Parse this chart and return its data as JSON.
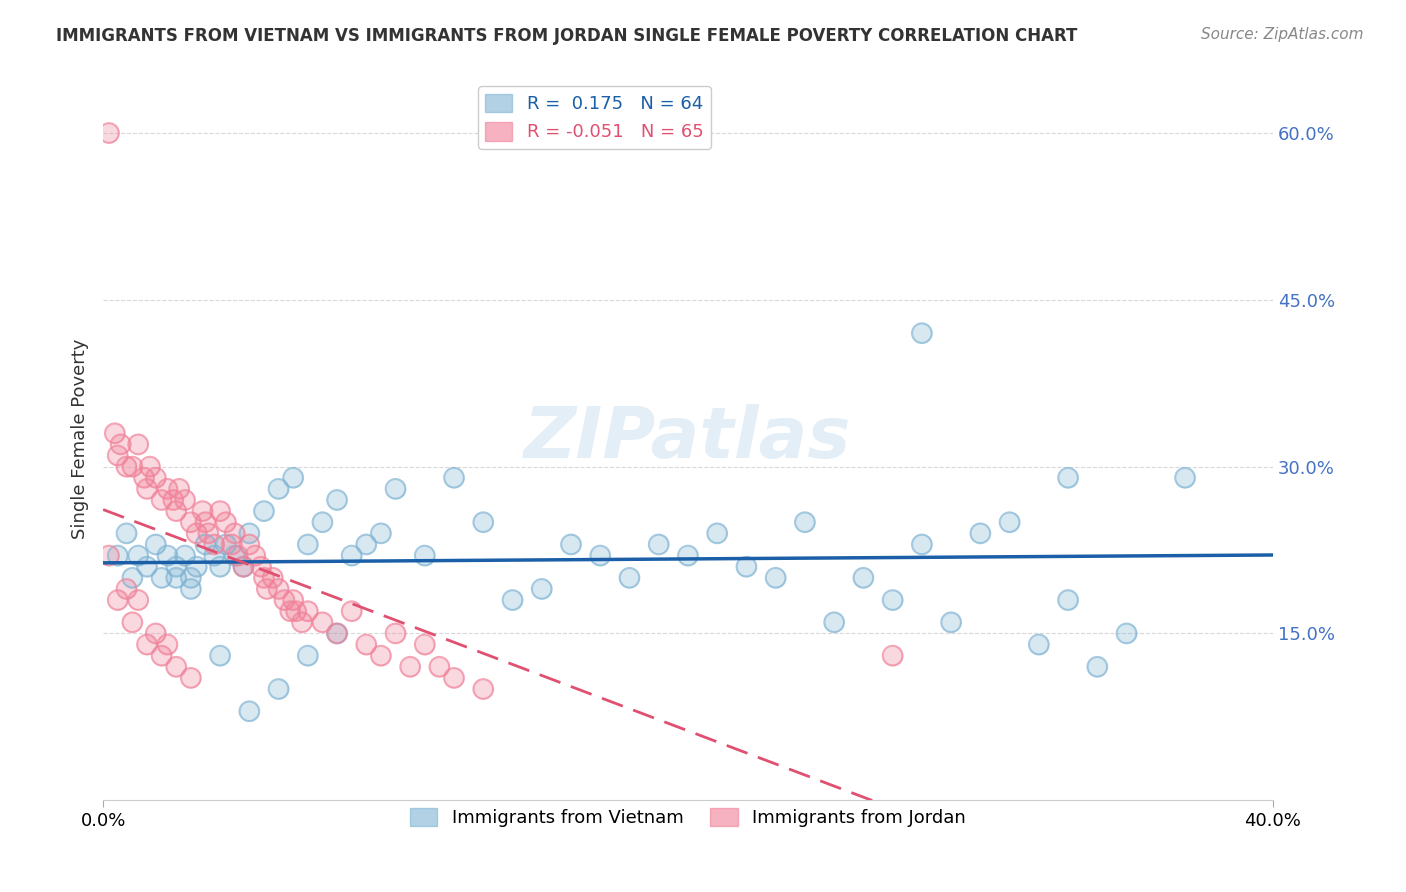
{
  "title": "IMMIGRANTS FROM VIETNAM VS IMMIGRANTS FROM JORDAN SINGLE FEMALE POVERTY CORRELATION CHART",
  "source": "Source: ZipAtlas.com",
  "xlabel_bottom_left": "0.0%",
  "xlabel_bottom_right": "40.0%",
  "ylabel": "Single Female Poverty",
  "right_yticks": [
    "60.0%",
    "45.0%",
    "30.0%",
    "15.0%"
  ],
  "right_ytick_vals": [
    0.6,
    0.45,
    0.3,
    0.15
  ],
  "xlim": [
    0.0,
    0.4
  ],
  "ylim": [
    0.0,
    0.65
  ],
  "watermark": "ZIPatlas",
  "legend_entries": [
    {
      "label": "R =  0.175   N = 64",
      "color": "#a8c4e0"
    },
    {
      "label": "R = -0.051   N = 65",
      "color": "#f4a8b8"
    }
  ],
  "vietnam_color": "#7fb3d3",
  "jordan_color": "#f08098",
  "vietnam_line_color": "#1a5fa8",
  "jordan_line_color": "#e05070",
  "vietnam_R": 0.175,
  "jordan_R": -0.051,
  "vietnam_N": 64,
  "jordan_N": 65,
  "background_color": "#ffffff",
  "grid_color": "#d8d8d8",
  "vietnam_scatter_x": [
    0.005,
    0.008,
    0.01,
    0.012,
    0.015,
    0.018,
    0.02,
    0.022,
    0.025,
    0.028,
    0.03,
    0.032,
    0.035,
    0.038,
    0.04,
    0.042,
    0.045,
    0.048,
    0.05,
    0.055,
    0.06,
    0.065,
    0.07,
    0.075,
    0.08,
    0.085,
    0.09,
    0.095,
    0.1,
    0.11,
    0.12,
    0.13,
    0.14,
    0.15,
    0.16,
    0.17,
    0.18,
    0.19,
    0.2,
    0.21,
    0.22,
    0.23,
    0.24,
    0.25,
    0.26,
    0.27,
    0.28,
    0.29,
    0.3,
    0.31,
    0.32,
    0.33,
    0.34,
    0.35,
    0.025,
    0.03,
    0.04,
    0.05,
    0.06,
    0.07,
    0.08,
    0.28,
    0.33,
    0.37
  ],
  "vietnam_scatter_y": [
    0.22,
    0.24,
    0.2,
    0.22,
    0.21,
    0.23,
    0.2,
    0.22,
    0.21,
    0.22,
    0.2,
    0.21,
    0.23,
    0.22,
    0.21,
    0.23,
    0.22,
    0.21,
    0.24,
    0.26,
    0.28,
    0.29,
    0.23,
    0.25,
    0.27,
    0.22,
    0.23,
    0.24,
    0.28,
    0.22,
    0.29,
    0.25,
    0.18,
    0.19,
    0.23,
    0.22,
    0.2,
    0.23,
    0.22,
    0.24,
    0.21,
    0.2,
    0.25,
    0.16,
    0.2,
    0.18,
    0.23,
    0.16,
    0.24,
    0.25,
    0.14,
    0.18,
    0.12,
    0.15,
    0.2,
    0.19,
    0.13,
    0.08,
    0.1,
    0.13,
    0.15,
    0.42,
    0.29,
    0.29
  ],
  "jordan_scatter_x": [
    0.002,
    0.004,
    0.005,
    0.006,
    0.008,
    0.01,
    0.012,
    0.014,
    0.015,
    0.016,
    0.018,
    0.02,
    0.022,
    0.024,
    0.025,
    0.026,
    0.028,
    0.03,
    0.032,
    0.034,
    0.035,
    0.036,
    0.038,
    0.04,
    0.042,
    0.044,
    0.045,
    0.046,
    0.048,
    0.05,
    0.052,
    0.054,
    0.055,
    0.056,
    0.058,
    0.06,
    0.062,
    0.064,
    0.065,
    0.066,
    0.068,
    0.07,
    0.075,
    0.08,
    0.085,
    0.09,
    0.095,
    0.1,
    0.105,
    0.11,
    0.115,
    0.12,
    0.13,
    0.005,
    0.01,
    0.015,
    0.02,
    0.025,
    0.03,
    0.008,
    0.012,
    0.018,
    0.022,
    0.27,
    0.002
  ],
  "jordan_scatter_y": [
    0.6,
    0.33,
    0.31,
    0.32,
    0.3,
    0.3,
    0.32,
    0.29,
    0.28,
    0.3,
    0.29,
    0.27,
    0.28,
    0.27,
    0.26,
    0.28,
    0.27,
    0.25,
    0.24,
    0.26,
    0.25,
    0.24,
    0.23,
    0.26,
    0.25,
    0.23,
    0.24,
    0.22,
    0.21,
    0.23,
    0.22,
    0.21,
    0.2,
    0.19,
    0.2,
    0.19,
    0.18,
    0.17,
    0.18,
    0.17,
    0.16,
    0.17,
    0.16,
    0.15,
    0.17,
    0.14,
    0.13,
    0.15,
    0.12,
    0.14,
    0.12,
    0.11,
    0.1,
    0.18,
    0.16,
    0.14,
    0.13,
    0.12,
    0.11,
    0.19,
    0.18,
    0.15,
    0.14,
    0.13,
    0.22
  ]
}
